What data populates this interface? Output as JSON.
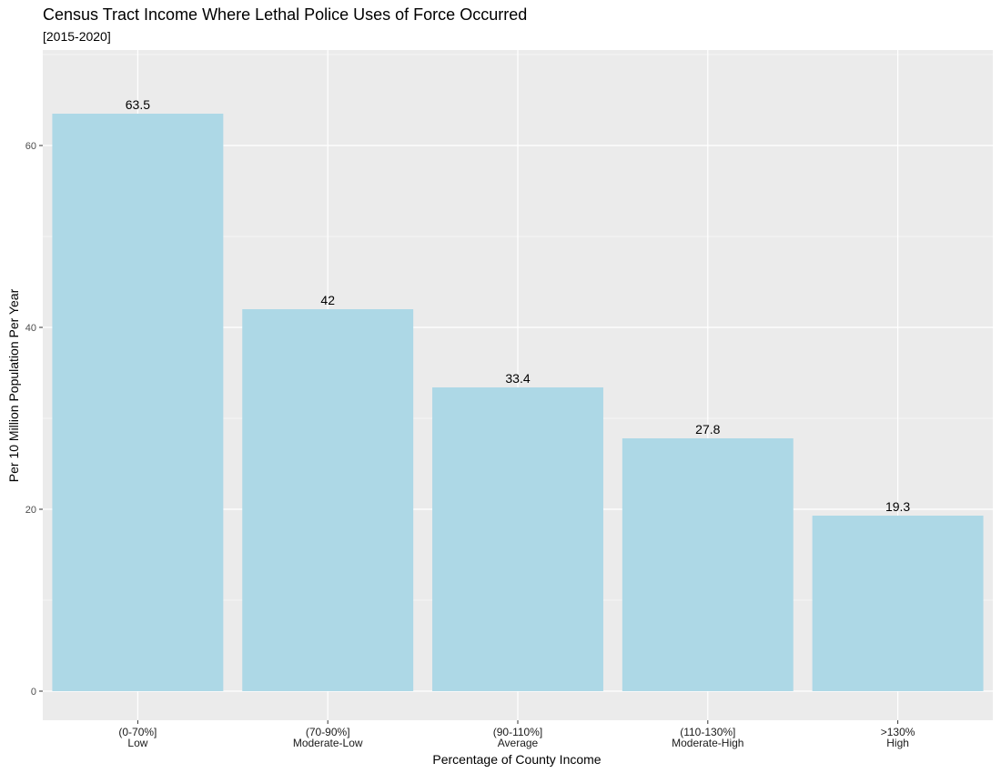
{
  "chart_data": {
    "type": "bar",
    "title": "Census Tract Income Where Lethal Police Uses of Force Occurred",
    "subtitle": "[2015-2020]",
    "xlabel": "Percentage of County Income",
    "ylabel": "Per 10 Million Population Per Year",
    "categories": [
      {
        "range": "(0-70%]",
        "name": "Low"
      },
      {
        "range": "(70-90%]",
        "name": "Moderate-Low"
      },
      {
        "range": "(90-110%]",
        "name": "Average"
      },
      {
        "range": "(110-130%]",
        "name": "Moderate-High"
      },
      {
        "range": ">130%",
        "name": "High"
      }
    ],
    "values": [
      63.5,
      42,
      33.4,
      27.8,
      19.3
    ],
    "data_labels": [
      "63.5",
      "42",
      "33.4",
      "27.8",
      "19.3"
    ],
    "y_ticks": [
      0,
      20,
      40,
      60
    ],
    "ylim": [
      -3.2,
      70.5
    ],
    "grid": true,
    "colors": {
      "bar": "#add8e6",
      "panel": "#ebebeb",
      "grid_major": "#ffffff",
      "text": "#000000",
      "tick_text": "#4d4d4d"
    }
  }
}
